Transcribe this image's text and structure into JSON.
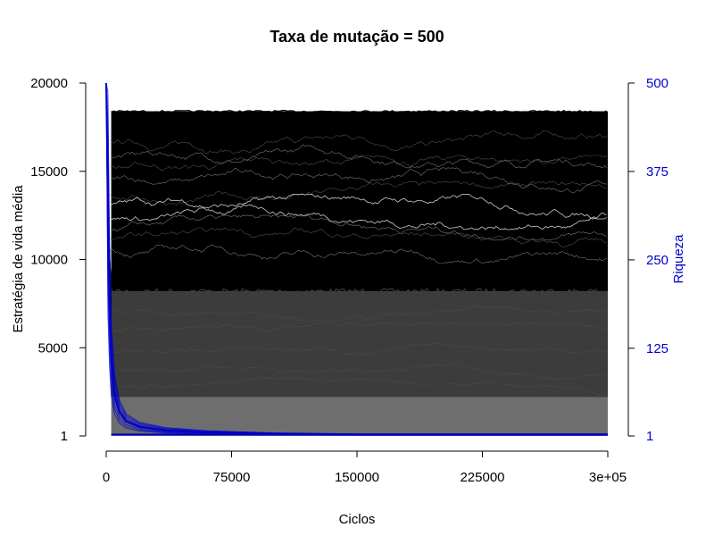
{
  "chart_data": {
    "type": "line",
    "title": "Taxa de mutação = 500",
    "xlabel": "Ciclos",
    "ylabel": "Estratégia de vida média",
    "y2label": "Riqueza",
    "xlim": [
      0,
      300000
    ],
    "ylim": [
      1,
      20000
    ],
    "y2lim": [
      1,
      500
    ],
    "x_ticks": [
      {
        "value": 0,
        "label": "0"
      },
      {
        "value": 75000,
        "label": "75000"
      },
      {
        "value": 150000,
        "label": "150000"
      },
      {
        "value": 225000,
        "label": "225000"
      },
      {
        "value": 300000,
        "label": "3e+05"
      }
    ],
    "y_ticks": [
      {
        "value": 1,
        "label": "1"
      },
      {
        "value": 5000,
        "label": "5000"
      },
      {
        "value": 10000,
        "label": "10000"
      },
      {
        "value": 15000,
        "label": "15000"
      },
      {
        "value": 20000,
        "label": "20000"
      }
    ],
    "y2_ticks": [
      {
        "value": 1,
        "label": "1"
      },
      {
        "value": 125,
        "label": "125"
      },
      {
        "value": 250,
        "label": "250"
      },
      {
        "value": 375,
        "label": "375"
      },
      {
        "value": 500,
        "label": "500"
      }
    ],
    "colors": {
      "strategy_lines": "#000000",
      "strategy_mid_band": "#3c3c3c",
      "strategy_low_band": "#6e6e6e",
      "richness": "#0000cc",
      "right_axis_text": "#0000cc"
    },
    "bands": [
      {
        "name": "low",
        "y_min": 1,
        "y_max": 2200,
        "color": "#6e6e6e"
      },
      {
        "name": "mid",
        "y_min": 2200,
        "y_max": 8200,
        "color": "#3c3c3c"
      },
      {
        "name": "high",
        "y_min": 8200,
        "y_max": 18400,
        "color": "#000000"
      }
    ],
    "richness_series": {
      "x": [
        0,
        1000,
        2000,
        3000,
        5000,
        8000,
        12000,
        20000,
        35000,
        60000,
        100000,
        150000,
        225000,
        300000
      ],
      "y": [
        500,
        330,
        190,
        110,
        60,
        35,
        22,
        14,
        9,
        6,
        4,
        3,
        3,
        3
      ]
    },
    "grid": false,
    "legend": "none"
  }
}
